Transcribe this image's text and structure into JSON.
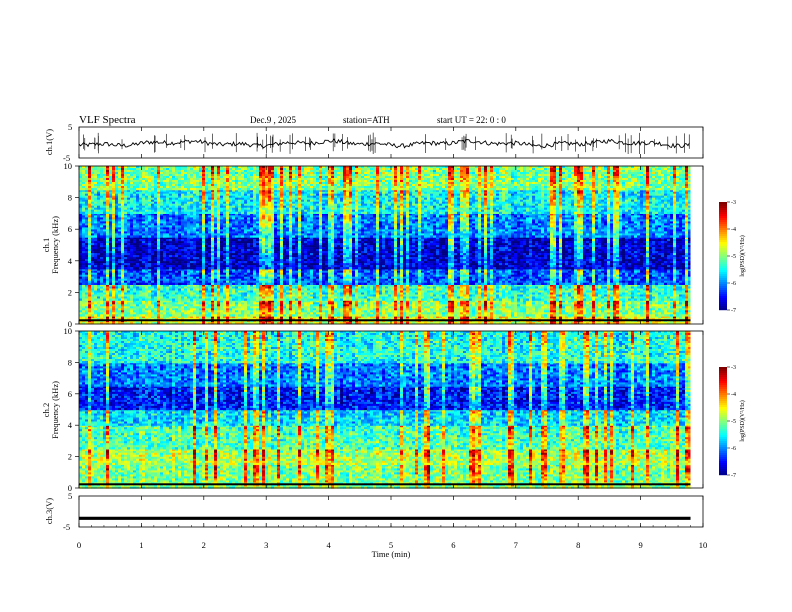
{
  "header": {
    "title": "VLF  Spectra",
    "date": "Dec.9  , 2025",
    "station": "station=ATH",
    "start": "start  UT  =    22: 0   : 0"
  },
  "chart_data": [
    {
      "type": "line",
      "ylabel": "ch.1(V)",
      "ylim": [
        -5,
        5
      ],
      "yticks": [
        "5",
        "-5"
      ],
      "description_level": -0.3
    },
    {
      "type": "heatmap",
      "ylabel": "ch.1\nFrequency  (kHz)",
      "ylabel_lines": [
        "ch.1",
        "Frequency  (kHz)"
      ],
      "ylim": [
        0,
        10
      ],
      "yticks": [
        "0",
        "2",
        "4",
        "6",
        "8",
        "10"
      ],
      "colorbar": {
        "label": "log(PSD)(V²/Hz)",
        "ticks": [
          "-3",
          "-4",
          "-5",
          "-6",
          "-7"
        ],
        "range": [
          -7,
          -3
        ]
      },
      "bands_khz": [
        {
          "from": 0.0,
          "to": 0.5,
          "level": -4.6
        },
        {
          "from": 0.5,
          "to": 1.5,
          "level": -5.0
        },
        {
          "from": 1.5,
          "to": 2.5,
          "level": -5.3
        },
        {
          "from": 2.5,
          "to": 3.5,
          "level": -6.2
        },
        {
          "from": 3.5,
          "to": 5.5,
          "level": -6.7
        },
        {
          "from": 5.5,
          "to": 7.0,
          "level": -6.0
        },
        {
          "from": 7.0,
          "to": 8.5,
          "level": -5.5
        },
        {
          "from": 8.5,
          "to": 10.0,
          "level": -5.0
        }
      ]
    },
    {
      "type": "heatmap",
      "ylabel": "ch.2\nFrequency  (kHz)",
      "ylabel_lines": [
        "ch.2",
        "Frequency  (kHz)"
      ],
      "ylim": [
        0,
        10
      ],
      "yticks": [
        "0",
        "2",
        "4",
        "6",
        "8",
        "10"
      ],
      "colorbar": {
        "label": "log(PSD)(V²/Hz)",
        "ticks": [
          "-3",
          "-4",
          "-5",
          "-6",
          "-7"
        ],
        "range": [
          -7,
          -3
        ]
      },
      "bands_khz": [
        {
          "from": 0.0,
          "to": 1.5,
          "level": -5.0
        },
        {
          "from": 1.5,
          "to": 2.5,
          "level": -4.8
        },
        {
          "from": 2.5,
          "to": 4.0,
          "level": -5.2
        },
        {
          "from": 4.0,
          "to": 5.0,
          "level": -5.6
        },
        {
          "from": 5.0,
          "to": 6.5,
          "level": -6.4
        },
        {
          "from": 6.5,
          "to": 8.0,
          "level": -6.0
        },
        {
          "from": 8.0,
          "to": 10.0,
          "level": -5.4
        }
      ]
    },
    {
      "type": "line",
      "ylabel": "ch.3(V)",
      "ylim": [
        -5,
        5
      ],
      "yticks": [
        "5",
        "-5"
      ],
      "description_level": -2.2
    }
  ],
  "xaxis": {
    "label": "Time  (min)",
    "ticks": [
      "0",
      "1",
      "2",
      "3",
      "4",
      "5",
      "6",
      "7",
      "8",
      "9",
      "10"
    ],
    "xlim": [
      0,
      10
    ],
    "data_end": 9.8
  }
}
